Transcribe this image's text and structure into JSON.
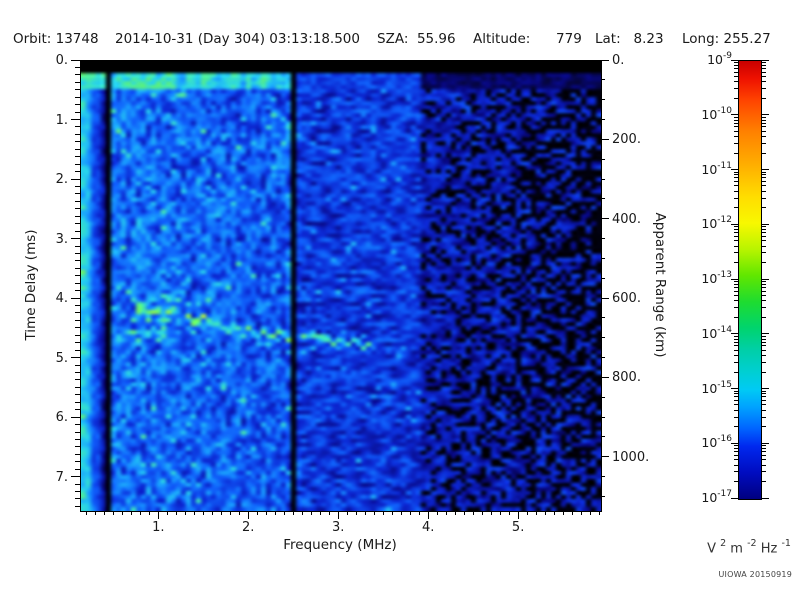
{
  "header": {
    "orbit": "Orbit: 13748",
    "datetime": "2014-10-31 (Day 304) 03:13:18.500",
    "sza": "SZA:  55.96",
    "altitude": "Altitude:      779",
    "lat": "Lat:   8.23",
    "long": "Long: 255.27"
  },
  "chart_data": {
    "type": "heatmap",
    "title": "",
    "xlabel": "Frequency (MHz)",
    "ylabel_left": "Time Delay (ms)",
    "ylabel_right": "Apparent Range (km)",
    "x_range_mhz": [
      0.13,
      5.91
    ],
    "x_ticks": [
      1,
      2,
      3,
      4,
      5
    ],
    "x_tick_labels": [
      "1.",
      "2.",
      "3.",
      "4.",
      "5."
    ],
    "x_minor_step_mhz": 0.1,
    "y_range_ms": [
      0,
      7.56
    ],
    "y_ticks": [
      0,
      1,
      2,
      3,
      4,
      5,
      6,
      7
    ],
    "y_tick_labels": [
      "0.",
      "1.",
      "2.",
      "3.",
      "4.",
      "5.",
      "6.",
      "7."
    ],
    "y_minor_step_ms": 0.125,
    "right_range_km": [
      0,
      1134
    ],
    "right_ticks": [
      0,
      200,
      400,
      600,
      800,
      1000
    ],
    "right_tick_labels": [
      "0.",
      "200.",
      "400.",
      "600.",
      "800.",
      "1000."
    ],
    "right_minor_step_km": 50,
    "grid": false,
    "legend": "colorbar-right",
    "colorbar": {
      "scale": "log",
      "exponents": [
        -9,
        -10,
        -11,
        -12,
        -13,
        -14,
        -15,
        -16,
        -17
      ],
      "base": "10",
      "unit_parts": [
        {
          "t": "V "
        },
        {
          "t": "2",
          "sup": true
        },
        {
          "t": " m "
        },
        {
          "t": "-2",
          "sup": true
        },
        {
          "t": " Hz "
        },
        {
          "t": "-1",
          "sup": true
        }
      ],
      "gradient": [
        [
          0,
          "#c80000"
        ],
        [
          0.04,
          "#ee1100"
        ],
        [
          0.09,
          "#ff4400"
        ],
        [
          0.16,
          "#ff8000"
        ],
        [
          0.24,
          "#ffb000"
        ],
        [
          0.31,
          "#ffdd00"
        ],
        [
          0.37,
          "#f8f800"
        ],
        [
          0.43,
          "#b8f400"
        ],
        [
          0.49,
          "#60e700"
        ],
        [
          0.55,
          "#1edc30"
        ],
        [
          0.61,
          "#00d46e"
        ],
        [
          0.66,
          "#00cfa8"
        ],
        [
          0.71,
          "#00cfd2"
        ],
        [
          0.75,
          "#00caf4"
        ],
        [
          0.79,
          "#00a2ff"
        ],
        [
          0.84,
          "#0063ff"
        ],
        [
          0.88,
          "#0028ee"
        ],
        [
          0.94,
          "#000cc0"
        ],
        [
          1,
          "#000080"
        ]
      ]
    },
    "features": {
      "top_blank_band_ms": [
        0,
        0.235
      ],
      "leading_edge_row_ms": [
        0.235,
        0.46
      ],
      "frequency_gaps_mhz": [
        [
          0.41,
          0.49
        ],
        [
          2.47,
          2.53
        ]
      ],
      "echo_trace_points_mhz_ms": [
        [
          0.62,
          4.3
        ],
        [
          0.7,
          4.05
        ],
        [
          0.78,
          4.22
        ],
        [
          1.0,
          4.22
        ],
        [
          1.3,
          4.3
        ],
        [
          1.55,
          4.35
        ],
        [
          1.75,
          4.5
        ],
        [
          2.1,
          4.57
        ],
        [
          2.45,
          4.6
        ],
        [
          2.9,
          4.66
        ],
        [
          3.2,
          4.74
        ],
        [
          3.6,
          4.85
        ]
      ],
      "echo_trace_extent_mhz": [
        0.6,
        3.65
      ],
      "bright_band_max_mhz": 0.41,
      "noise_fade_start_mhz": 3.9,
      "noise_seed": 7
    }
  },
  "credit": "UIOWA 20150919"
}
